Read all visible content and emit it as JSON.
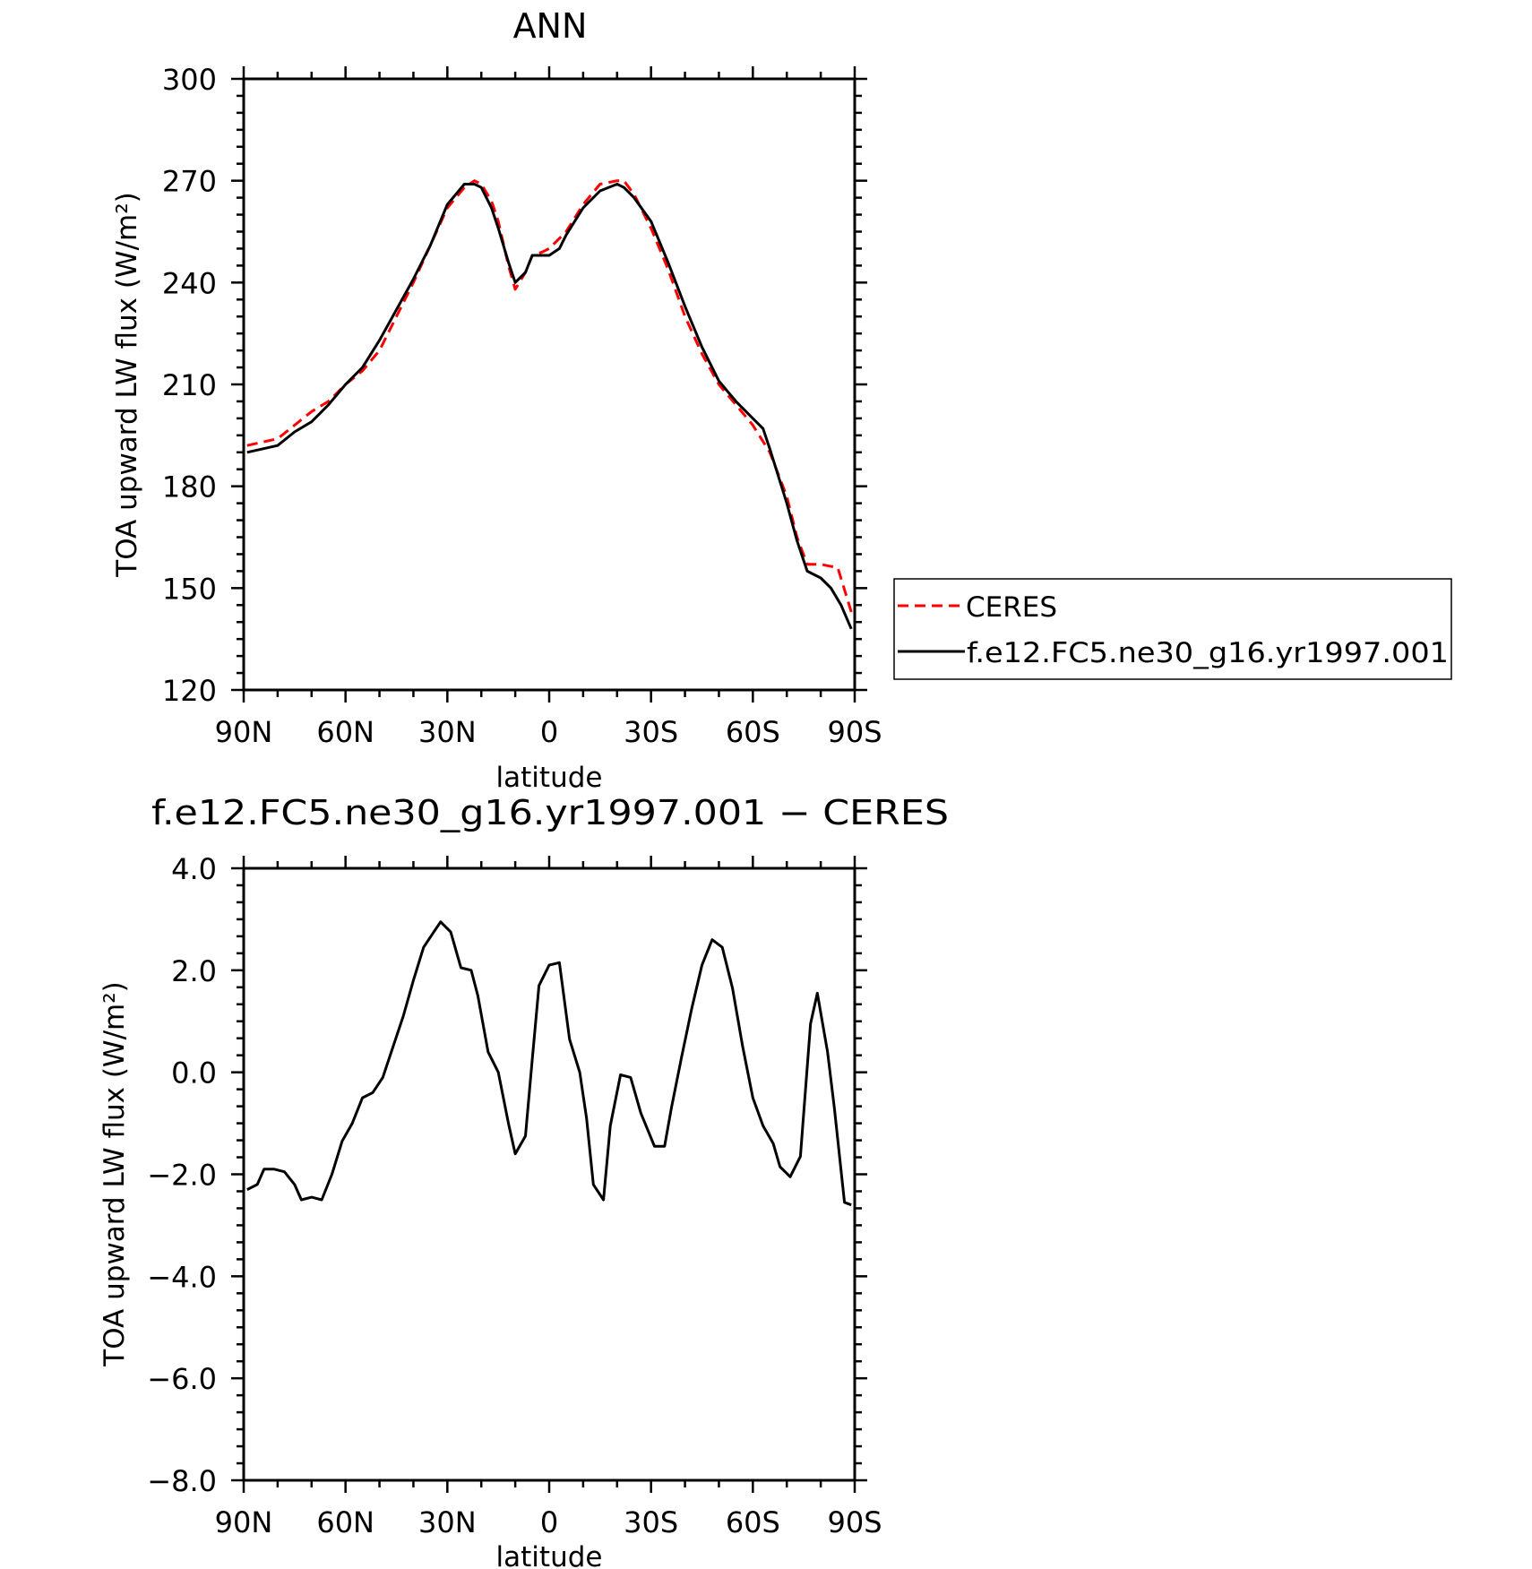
{
  "chart_data": [
    {
      "type": "line",
      "title": "ANN",
      "xlabel": "latitude",
      "ylabel": "TOA upward LW flux (W/m²)",
      "xlim": [
        90,
        -90
      ],
      "ylim": [
        120,
        300
      ],
      "x_ticks": [
        {
          "value": 90,
          "label": "90N"
        },
        {
          "value": 60,
          "label": "60N"
        },
        {
          "value": 30,
          "label": "30N"
        },
        {
          "value": 0,
          "label": "0"
        },
        {
          "value": -30,
          "label": "30S"
        },
        {
          "value": -60,
          "label": "60S"
        },
        {
          "value": -90,
          "label": "90S"
        }
      ],
      "y_ticks": [
        {
          "value": 120,
          "label": "120"
        },
        {
          "value": 150,
          "label": "150"
        },
        {
          "value": 180,
          "label": "180"
        },
        {
          "value": 210,
          "label": "210"
        },
        {
          "value": 240,
          "label": "240"
        },
        {
          "value": 270,
          "label": "270"
        },
        {
          "value": 300,
          "label": "300"
        }
      ],
      "grid": false,
      "legend": "right, outside plot",
      "series": [
        {
          "name": "CERES",
          "color": "#ff0000",
          "style": "dashed",
          "x": [
            89,
            80,
            75,
            70,
            65,
            60,
            55,
            50,
            45,
            40,
            35,
            30,
            25,
            22,
            20,
            17,
            15,
            12,
            10,
            7,
            5,
            2,
            0,
            -5,
            -10,
            -15,
            -20,
            -22,
            -25,
            -30,
            -35,
            -40,
            -45,
            -50,
            -55,
            -60,
            -65,
            -70,
            -73,
            -76,
            -80,
            -85,
            -89
          ],
          "values": [
            192,
            194,
            198,
            202,
            205,
            210,
            214,
            220,
            230,
            240,
            251,
            262,
            268,
            270,
            269,
            264,
            258,
            245,
            238,
            243,
            248,
            249,
            250,
            255,
            263,
            269,
            270,
            270,
            266,
            256,
            244,
            230,
            219,
            210,
            204,
            198,
            190,
            177,
            165,
            157,
            157,
            156,
            143
          ]
        },
        {
          "name": "f.e12.FC5.ne30_g16.yr1997.001",
          "color": "#000000",
          "style": "solid",
          "x": [
            89,
            80,
            75,
            70,
            65,
            60,
            55,
            50,
            45,
            40,
            35,
            30,
            25,
            22,
            20,
            17,
            15,
            12,
            10,
            7,
            5,
            2,
            0,
            -3,
            -5,
            -10,
            -15,
            -20,
            -22,
            -25,
            -30,
            -35,
            -40,
            -45,
            -50,
            -55,
            -60,
            -63,
            -65,
            -70,
            -73,
            -76,
            -80,
            -83,
            -86,
            -89
          ],
          "values": [
            190,
            192,
            196,
            199,
            204,
            210,
            215,
            223,
            232,
            241,
            251,
            263,
            269,
            269,
            268,
            262,
            256,
            246,
            240,
            243,
            248,
            248,
            248,
            250,
            254,
            262,
            267,
            269,
            268,
            265,
            258,
            246,
            233,
            221,
            211,
            205,
            200,
            197,
            191,
            175,
            164,
            155,
            153,
            150,
            145,
            138
          ]
        }
      ]
    },
    {
      "type": "line",
      "title": "f.e12.FC5.ne30_g16.yr1997.001 − CERES",
      "xlabel": "latitude",
      "ylabel": "TOA upward LW flux (W/m²)",
      "xlim": [
        90,
        -90
      ],
      "ylim": [
        -8.0,
        4.0
      ],
      "x_ticks": [
        {
          "value": 90,
          "label": "90N"
        },
        {
          "value": 60,
          "label": "60N"
        },
        {
          "value": 30,
          "label": "30N"
        },
        {
          "value": 0,
          "label": "0"
        },
        {
          "value": -30,
          "label": "30S"
        },
        {
          "value": -60,
          "label": "60S"
        },
        {
          "value": -90,
          "label": "90S"
        }
      ],
      "y_ticks": [
        {
          "value": -8.0,
          "label": "−8.0"
        },
        {
          "value": -6.0,
          "label": "−6.0"
        },
        {
          "value": -4.0,
          "label": "−4.0"
        },
        {
          "value": -2.0,
          "label": "−2.0"
        },
        {
          "value": 0.0,
          "label": "0.0"
        },
        {
          "value": 2.0,
          "label": "2.0"
        },
        {
          "value": 4.0,
          "label": "4.0"
        }
      ],
      "grid": false,
      "series": [
        {
          "color": "#000000",
          "style": "solid",
          "x": [
            89,
            86,
            84,
            81,
            78,
            75,
            73,
            70,
            67,
            64,
            61,
            58,
            55,
            52,
            49,
            46,
            43,
            40,
            37,
            34,
            32,
            29,
            26,
            23,
            21,
            18,
            15,
            12,
            10,
            7,
            5,
            3,
            0,
            -3,
            -6,
            -9,
            -11,
            -13,
            -16,
            -18,
            -21,
            -24,
            -27,
            -31,
            -34,
            -36,
            -39,
            -42,
            -45,
            -48,
            -51,
            -54,
            -57,
            -60,
            -63,
            -66,
            -68,
            -71,
            -74,
            -77,
            -79,
            -82,
            -84,
            -87,
            -89
          ],
          "values": [
            -2.3,
            -2.2,
            -1.9,
            -1.9,
            -1.95,
            -2.2,
            -2.5,
            -2.45,
            -2.5,
            -2.0,
            -1.35,
            -1.0,
            -0.5,
            -0.4,
            -0.1,
            0.5,
            1.1,
            1.8,
            2.45,
            2.75,
            2.95,
            2.75,
            2.05,
            2.0,
            1.5,
            0.4,
            0.0,
            -1.0,
            -1.6,
            -1.25,
            0.25,
            1.7,
            2.1,
            2.15,
            0.65,
            0.0,
            -0.9,
            -2.2,
            -2.5,
            -1.05,
            -0.05,
            -0.1,
            -0.8,
            -1.45,
            -1.45,
            -0.7,
            0.3,
            1.25,
            2.1,
            2.6,
            2.45,
            1.65,
            0.5,
            -0.5,
            -1.05,
            -1.4,
            -1.85,
            -2.05,
            -1.65,
            0.95,
            1.55,
            0.4,
            -0.7,
            -2.55,
            -2.6
          ]
        }
      ]
    }
  ]
}
